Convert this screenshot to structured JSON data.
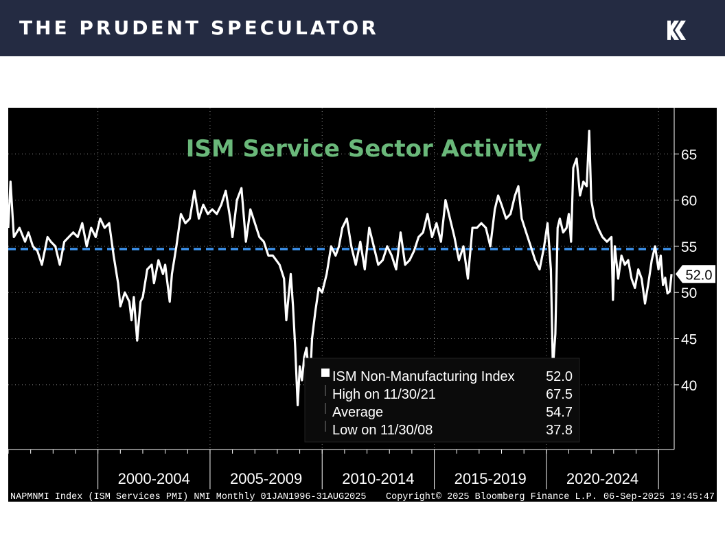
{
  "header": {
    "brand": "THE PRUDENT SPECULATOR",
    "logo_icon": "k-arrows-logo-icon"
  },
  "chart_data": {
    "type": "line",
    "title": "ISM Service Sector Activity",
    "xlabel": "",
    "ylabel": "",
    "x_range": [
      1996.0,
      2025.7
    ],
    "ylim": [
      33,
      70
    ],
    "y_ticks": [
      40,
      45,
      50,
      55,
      60,
      65
    ],
    "x_period_labels": [
      "2000-2004",
      "2005-2009",
      "2010-2014",
      "2015-2019",
      "2020-2024"
    ],
    "grid": true,
    "average_line": 54.7,
    "current_value_label": "52.0",
    "series": [
      {
        "name": "ISM Non-Manufacturing Index",
        "color": "#ffffff",
        "points": [
          [
            1996.0,
            57.0
          ],
          [
            1996.1,
            62.0
          ],
          [
            1996.25,
            56.0
          ],
          [
            1996.5,
            57.0
          ],
          [
            1996.75,
            55.5
          ],
          [
            1996.9,
            56.5
          ],
          [
            1997.1,
            55.0
          ],
          [
            1997.3,
            54.5
          ],
          [
            1997.5,
            53.0
          ],
          [
            1997.75,
            56.0
          ],
          [
            1997.9,
            55.5
          ],
          [
            1998.1,
            55.0
          ],
          [
            1998.3,
            53.0
          ],
          [
            1998.5,
            55.5
          ],
          [
            1998.7,
            56.0
          ],
          [
            1998.9,
            56.5
          ],
          [
            1999.1,
            56.0
          ],
          [
            1999.3,
            57.5
          ],
          [
            1999.5,
            55.0
          ],
          [
            1999.7,
            57.0
          ],
          [
            1999.9,
            56.0
          ],
          [
            2000.1,
            58.0
          ],
          [
            2000.3,
            57.0
          ],
          [
            2000.5,
            57.5
          ],
          [
            2000.7,
            54.0
          ],
          [
            2000.9,
            51.0
          ],
          [
            2001.0,
            48.5
          ],
          [
            2001.2,
            50.0
          ],
          [
            2001.4,
            49.0
          ],
          [
            2001.5,
            47.0
          ],
          [
            2001.6,
            49.5
          ],
          [
            2001.75,
            44.8
          ],
          [
            2001.9,
            49.0
          ],
          [
            2002.0,
            49.5
          ],
          [
            2002.2,
            52.5
          ],
          [
            2002.4,
            53.0
          ],
          [
            2002.5,
            51.0
          ],
          [
            2002.7,
            53.5
          ],
          [
            2002.9,
            52.0
          ],
          [
            2003.0,
            53.0
          ],
          [
            2003.2,
            49.0
          ],
          [
            2003.3,
            52.0
          ],
          [
            2003.5,
            55.0
          ],
          [
            2003.7,
            58.5
          ],
          [
            2003.9,
            57.5
          ],
          [
            2004.1,
            58.0
          ],
          [
            2004.3,
            61.0
          ],
          [
            2004.5,
            58.0
          ],
          [
            2004.7,
            59.5
          ],
          [
            2004.9,
            58.5
          ],
          [
            2005.1,
            59.0
          ],
          [
            2005.3,
            58.5
          ],
          [
            2005.5,
            59.5
          ],
          [
            2005.7,
            61.0
          ],
          [
            2005.9,
            58.0
          ],
          [
            2006.0,
            56.0
          ],
          [
            2006.2,
            60.0
          ],
          [
            2006.4,
            61.3
          ],
          [
            2006.6,
            55.5
          ],
          [
            2006.8,
            59.0
          ],
          [
            2007.0,
            57.5
          ],
          [
            2007.2,
            56.0
          ],
          [
            2007.4,
            55.5
          ],
          [
            2007.6,
            54.0
          ],
          [
            2007.8,
            54.0
          ],
          [
            2007.95,
            53.5
          ],
          [
            2008.1,
            53.0
          ],
          [
            2008.3,
            51.5
          ],
          [
            2008.4,
            47.0
          ],
          [
            2008.5,
            49.5
          ],
          [
            2008.6,
            52.0
          ],
          [
            2008.7,
            48.5
          ],
          [
            2008.8,
            44.0
          ],
          [
            2008.91,
            37.8
          ],
          [
            2009.0,
            42.0
          ],
          [
            2009.1,
            40.5
          ],
          [
            2009.2,
            43.0
          ],
          [
            2009.3,
            44.0
          ],
          [
            2009.45,
            40.0
          ],
          [
            2009.55,
            45.0
          ],
          [
            2009.7,
            48.0
          ],
          [
            2009.85,
            50.5
          ],
          [
            2010.0,
            50.0
          ],
          [
            2010.2,
            52.0
          ],
          [
            2010.4,
            55.0
          ],
          [
            2010.6,
            54.0
          ],
          [
            2010.75,
            55.0
          ],
          [
            2010.9,
            57.0
          ],
          [
            2011.1,
            58.0
          ],
          [
            2011.3,
            55.0
          ],
          [
            2011.5,
            53.0
          ],
          [
            2011.7,
            55.5
          ],
          [
            2011.9,
            52.5
          ],
          [
            2012.1,
            57.0
          ],
          [
            2012.3,
            55.0
          ],
          [
            2012.5,
            53.0
          ],
          [
            2012.7,
            53.5
          ],
          [
            2012.9,
            55.0
          ],
          [
            2013.1,
            54.0
          ],
          [
            2013.3,
            52.5
          ],
          [
            2013.5,
            56.5
          ],
          [
            2013.7,
            53.0
          ],
          [
            2013.9,
            53.5
          ],
          [
            2014.1,
            54.5
          ],
          [
            2014.3,
            56.0
          ],
          [
            2014.5,
            56.5
          ],
          [
            2014.7,
            58.5
          ],
          [
            2014.9,
            56.0
          ],
          [
            2015.1,
            57.5
          ],
          [
            2015.3,
            55.5
          ],
          [
            2015.5,
            60.0
          ],
          [
            2015.7,
            58.0
          ],
          [
            2015.9,
            56.0
          ],
          [
            2016.1,
            53.5
          ],
          [
            2016.3,
            55.0
          ],
          [
            2016.5,
            51.5
          ],
          [
            2016.7,
            57.0
          ],
          [
            2016.9,
            57.0
          ],
          [
            2017.1,
            57.5
          ],
          [
            2017.3,
            57.0
          ],
          [
            2017.5,
            55.0
          ],
          [
            2017.7,
            59.0
          ],
          [
            2017.85,
            60.5
          ],
          [
            2018.0,
            59.5
          ],
          [
            2018.2,
            58.0
          ],
          [
            2018.4,
            58.5
          ],
          [
            2018.6,
            60.5
          ],
          [
            2018.75,
            61.5
          ],
          [
            2018.9,
            58.0
          ],
          [
            2019.1,
            56.5
          ],
          [
            2019.3,
            55.0
          ],
          [
            2019.5,
            53.5
          ],
          [
            2019.7,
            52.5
          ],
          [
            2019.9,
            55.0
          ],
          [
            2020.05,
            57.5
          ],
          [
            2020.2,
            52.5
          ],
          [
            2020.29,
            41.8
          ],
          [
            2020.4,
            45.5
          ],
          [
            2020.5,
            57.0
          ],
          [
            2020.6,
            58.0
          ],
          [
            2020.75,
            56.5
          ],
          [
            2020.9,
            57.0
          ],
          [
            2021.0,
            58.5
          ],
          [
            2021.1,
            55.5
          ],
          [
            2021.2,
            63.5
          ],
          [
            2021.35,
            64.5
          ],
          [
            2021.5,
            60.5
          ],
          [
            2021.65,
            62.0
          ],
          [
            2021.8,
            61.5
          ],
          [
            2021.91,
            67.5
          ],
          [
            2022.0,
            60.0
          ],
          [
            2022.15,
            58.0
          ],
          [
            2022.3,
            57.0
          ],
          [
            2022.5,
            56.0
          ],
          [
            2022.7,
            55.5
          ],
          [
            2022.9,
            56.0
          ],
          [
            2022.97,
            49.2
          ],
          [
            2023.05,
            55.0
          ],
          [
            2023.2,
            51.5
          ],
          [
            2023.35,
            54.0
          ],
          [
            2023.5,
            53.0
          ],
          [
            2023.65,
            53.5
          ],
          [
            2023.8,
            51.5
          ],
          [
            2023.95,
            50.5
          ],
          [
            2024.1,
            52.5
          ],
          [
            2024.25,
            51.5
          ],
          [
            2024.4,
            48.8
          ],
          [
            2024.55,
            51.0
          ],
          [
            2024.7,
            53.5
          ],
          [
            2024.85,
            55.0
          ],
          [
            2025.0,
            52.5
          ],
          [
            2025.1,
            54.0
          ],
          [
            2025.2,
            50.8
          ],
          [
            2025.3,
            51.6
          ],
          [
            2025.4,
            49.9
          ],
          [
            2025.5,
            50.1
          ],
          [
            2025.58,
            52.0
          ]
        ]
      }
    ],
    "legend": {
      "placement": "bottom-center",
      "rows": [
        {
          "label": "ISM Non-Manufacturing Index",
          "value": "52.0"
        },
        {
          "label": "High on 11/30/21",
          "value": "67.5"
        },
        {
          "label": "Average",
          "value": "54.7"
        },
        {
          "label": "Low on 11/30/08",
          "value": "37.8"
        }
      ]
    },
    "footer": {
      "left": "NAPMNMI Index (ISM Services PMI) NMI  Monthly 01JAN1996-31AUG2025",
      "center": "Copyright© 2025 Bloomberg Finance L.P.",
      "right": "06-Sep-2025 19:45:47"
    },
    "colors": {
      "background": "#000000",
      "series": "#ffffff",
      "average_line": "#3b8fe8",
      "title": "#6ab87a",
      "grid": "#8a8a8a"
    }
  }
}
